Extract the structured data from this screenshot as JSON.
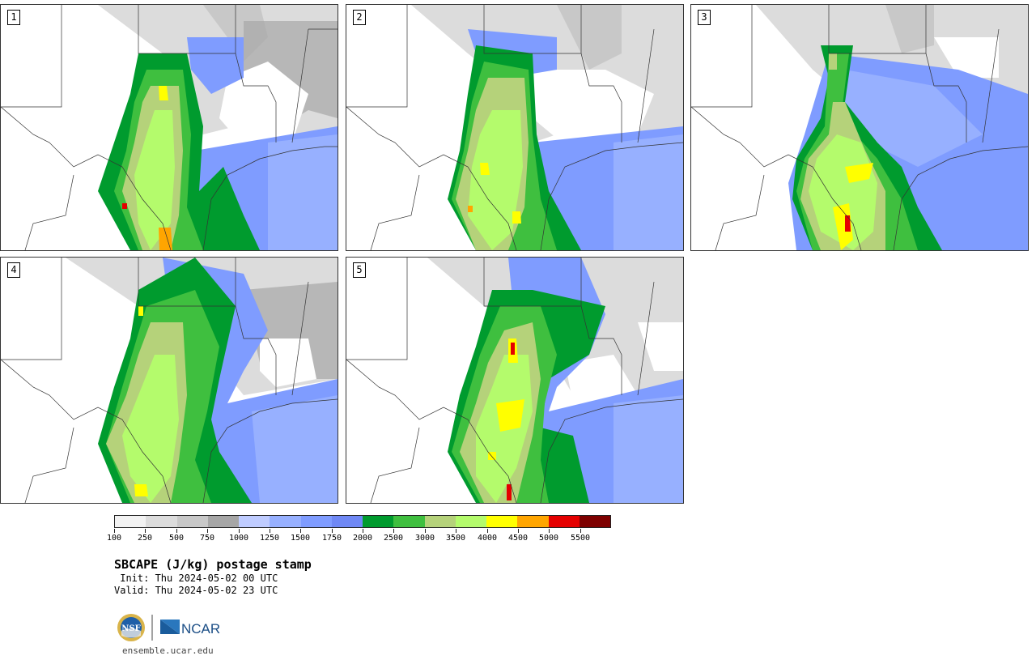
{
  "panels": [
    {
      "label": "1"
    },
    {
      "label": "2"
    },
    {
      "label": "3"
    },
    {
      "label": "4"
    },
    {
      "label": "5"
    }
  ],
  "colorbar": {
    "ticks": [
      "100",
      "250",
      "500",
      "750",
      "1000",
      "1250",
      "1500",
      "1750",
      "2000",
      "2500",
      "3000",
      "3500",
      "4000",
      "4500",
      "5000",
      "5500"
    ],
    "colors": [
      "#f2f2f2",
      "#dcdcdc",
      "#c8c8c8",
      "#a6a6a6",
      "#bfccff",
      "#97b0ff",
      "#7f9cff",
      "#6f88f5",
      "#009b2e",
      "#3fbf3f",
      "#b5d27a",
      "#b4fb6c",
      "#ffff00",
      "#ffa500",
      "#e50000",
      "#7e0000"
    ]
  },
  "title": "SBCAPE (J/kg) postage stamp",
  "init": " Init: Thu 2024-05-02 00 UTC",
  "valid": "Valid: Thu 2024-05-02 23 UTC",
  "logos": {
    "nsf": "NSF",
    "ncar": "NCAR"
  },
  "url": "ensemble.ucar.edu"
}
